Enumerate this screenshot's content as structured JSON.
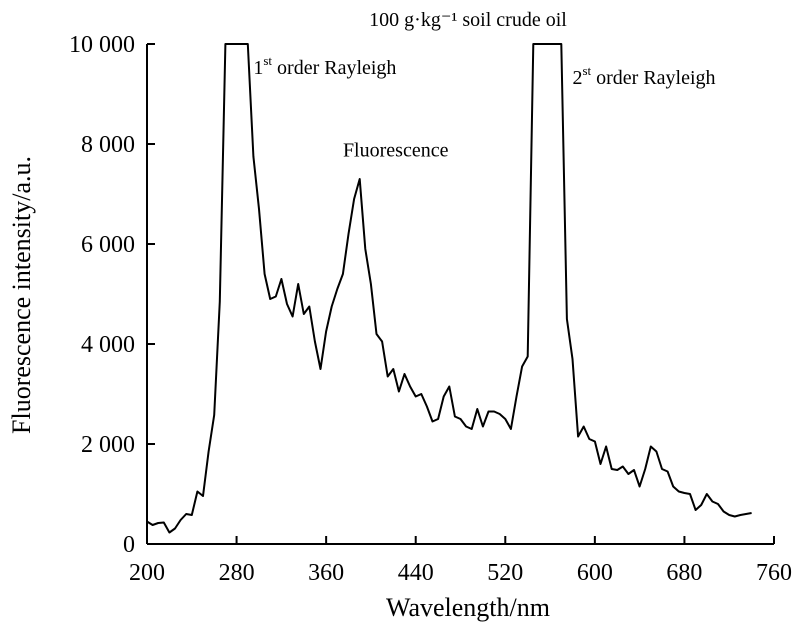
{
  "chart_data": {
    "type": "line",
    "title": "100 g·kg⁻¹ soil crude oil",
    "xlabel": "Wavelength/nm",
    "ylabel": "Fluorescence intensity/a.u.",
    "xlim": [
      200,
      760
    ],
    "ylim": [
      0,
      10000
    ],
    "x_ticks": [
      200,
      280,
      360,
      440,
      520,
      600,
      680,
      760
    ],
    "x_tick_labels": [
      "200",
      "280",
      "360",
      "440",
      "520",
      "600",
      "680",
      "760"
    ],
    "y_ticks": [
      0,
      2000,
      4000,
      6000,
      8000,
      10000
    ],
    "y_tick_labels": [
      "0",
      "2 000",
      "4 000",
      "6 000",
      "8 000",
      "10 000"
    ],
    "grid": false,
    "annotations": [
      {
        "text_sup": "st",
        "text_pre": "1",
        "text_post": " order Rayleigh",
        "x": 295,
        "y": 9400
      },
      {
        "text_pre": "Fluorescence",
        "x": 375,
        "y": 7750
      },
      {
        "text_sup": "st",
        "text_pre": "2",
        "text_post": " order Rayleigh",
        "x": 580,
        "y": 9200
      }
    ],
    "series": [
      {
        "x": [
          200,
          205,
          210,
          215,
          220,
          225,
          230,
          235,
          240,
          245,
          250,
          255,
          260,
          265,
          270,
          275,
          280,
          285,
          290,
          295,
          300,
          305,
          310,
          315,
          320,
          325,
          330,
          335,
          340,
          345,
          350,
          355,
          360,
          365,
          370,
          375,
          380,
          385,
          390,
          395,
          400,
          405,
          410,
          415,
          420,
          425,
          430,
          435,
          440,
          445,
          450,
          455,
          460,
          465,
          470,
          475,
          480,
          485,
          490,
          495,
          500,
          505,
          510,
          515,
          520,
          525,
          530,
          535,
          540,
          545,
          550,
          555,
          560,
          565,
          570,
          575,
          580,
          585,
          590,
          595,
          600,
          605,
          610,
          615,
          620,
          625,
          630,
          635,
          640,
          645,
          650,
          655,
          660,
          665,
          670,
          675,
          680,
          685,
          690,
          695,
          700,
          705,
          710,
          715,
          720,
          725,
          730,
          735,
          740
        ],
        "y": [
          450,
          380,
          420,
          430,
          230,
          310,
          480,
          600,
          580,
          1050,
          960,
          1850,
          2580,
          4850,
          10000,
          10000,
          10000,
          10000,
          10000,
          7750,
          6700,
          5400,
          4900,
          4950,
          5300,
          4800,
          4550,
          5200,
          4600,
          4750,
          4050,
          3500,
          4250,
          4750,
          5100,
          5400,
          6200,
          6900,
          7300,
          5900,
          5200,
          4200,
          4050,
          3350,
          3500,
          3050,
          3400,
          3150,
          2950,
          3000,
          2750,
          2450,
          2500,
          2950,
          3150,
          2550,
          2500,
          2350,
          2300,
          2700,
          2350,
          2650,
          2650,
          2600,
          2500,
          2300,
          2950,
          3550,
          3750,
          10000,
          10000,
          10000,
          10000,
          10000,
          10000,
          4500,
          3700,
          2150,
          2350,
          2100,
          2050,
          1600,
          1950,
          1500,
          1480,
          1550,
          1400,
          1480,
          1150,
          1500,
          1950,
          1850,
          1500,
          1450,
          1150,
          1050,
          1020,
          1000,
          680,
          780,
          1000,
          850,
          800,
          650,
          580,
          550,
          580,
          600,
          620
        ]
      }
    ]
  }
}
